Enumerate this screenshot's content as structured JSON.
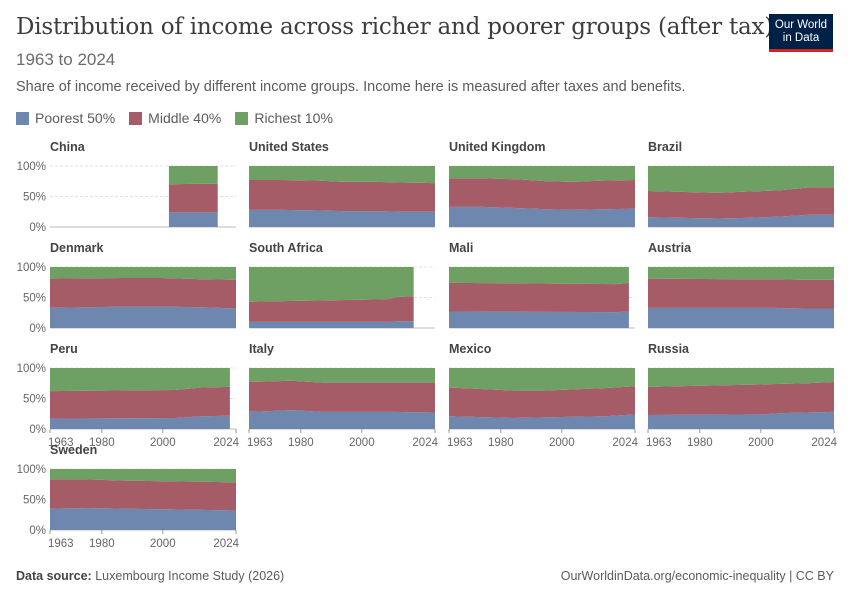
{
  "header": {
    "title": "Distribution of income across richer and poorer groups (after tax)",
    "subtitle": "1963 to 2024",
    "description": "Share of income received by different income groups. Income here is measured after taxes and benefits."
  },
  "logo": {
    "line1": "Our World",
    "line2": "in Data"
  },
  "legend": [
    {
      "label": "Poorest 50%",
      "color": "#6d87ae"
    },
    {
      "label": "Middle 40%",
      "color": "#a65c67"
    },
    {
      "label": "Richest 10%",
      "color": "#6e9f63"
    }
  ],
  "footer": {
    "source_label": "Data source:",
    "source_text": "Luxembourg Income Study (2026)",
    "credit": "OurWorldinData.org/economic-inequality | CC BY"
  },
  "chart_data": {
    "type": "area",
    "stacked": true,
    "xlim": [
      1963,
      2024
    ],
    "ylim": [
      0,
      100
    ],
    "yticks": [
      "0%",
      "50%",
      "100%"
    ],
    "xticks": [
      "1963",
      "1980",
      "2000",
      "2024"
    ],
    "series_names": [
      "Poorest 50%",
      "Middle 40%",
      "Richest 10%"
    ],
    "panels": [
      {
        "name": "China",
        "x": [
          2002,
          2013,
          2018
        ],
        "poorest": [
          24,
          24,
          24
        ],
        "middle": [
          46,
          47,
          47
        ]
      },
      {
        "name": "United States",
        "x": [
          1963,
          1974,
          1986,
          1994,
          2004,
          2013,
          2024
        ],
        "poorest": [
          28,
          28,
          27,
          26,
          26,
          25,
          25
        ],
        "middle": [
          49,
          49,
          49,
          48,
          48,
          48,
          47
        ]
      },
      {
        "name": "United Kingdom",
        "x": [
          1963,
          1974,
          1986,
          1995,
          2004,
          2013,
          2024
        ],
        "poorest": [
          33,
          33,
          31,
          29,
          28,
          29,
          30
        ],
        "middle": [
          47,
          47,
          47,
          46,
          46,
          47,
          47
        ]
      },
      {
        "name": "Brazil",
        "x": [
          1963,
          1986,
          1995,
          2006,
          2016,
          2024
        ],
        "poorest": [
          16,
          14,
          15,
          17,
          20,
          20
        ],
        "middle": [
          43,
          42,
          43,
          43,
          45,
          45
        ]
      },
      {
        "name": "Denmark",
        "x": [
          1963,
          1987,
          2000,
          2013,
          2024
        ],
        "poorest": [
          33,
          35,
          35,
          34,
          32
        ],
        "middle": [
          48,
          47,
          47,
          46,
          47
        ]
      },
      {
        "name": "South Africa",
        "x": [
          1963,
          2008,
          2012,
          2017
        ],
        "poorest": [
          10,
          10,
          11,
          11
        ],
        "middle": [
          33,
          37,
          40,
          41
        ]
      },
      {
        "name": "Mali",
        "x": [
          1963,
          2018,
          2022
        ],
        "poorest": [
          27,
          26,
          27
        ],
        "middle": [
          47,
          46,
          47
        ]
      },
      {
        "name": "Austria",
        "x": [
          1963,
          1994,
          2004,
          2014,
          2024
        ],
        "poorest": [
          33,
          33,
          33,
          32,
          32
        ],
        "middle": [
          48,
          47,
          47,
          47,
          47
        ]
      },
      {
        "name": "Peru",
        "x": [
          1963,
          2004,
          2013,
          2022
        ],
        "poorest": [
          17,
          18,
          21,
          22
        ],
        "middle": [
          45,
          46,
          47,
          47
        ]
      },
      {
        "name": "Italy",
        "x": [
          1963,
          1977,
          1987,
          1998,
          2010,
          2024
        ],
        "poorest": [
          28,
          31,
          28,
          28,
          28,
          27
        ],
        "middle": [
          49,
          48,
          48,
          48,
          48,
          49
        ]
      },
      {
        "name": "Mexico",
        "x": [
          1963,
          1984,
          1994,
          2004,
          2014,
          2024
        ],
        "poorest": [
          21,
          18,
          19,
          20,
          21,
          24
        ],
        "middle": [
          47,
          45,
          44,
          45,
          46,
          46
        ]
      },
      {
        "name": "Russia",
        "x": [
          1963,
          2000,
          2007,
          2015,
          2024
        ],
        "poorest": [
          23,
          24,
          26,
          27,
          28
        ],
        "middle": [
          46,
          49,
          48,
          48,
          49
        ]
      },
      {
        "name": "Sweden",
        "x": [
          1963,
          1975,
          1987,
          2000,
          2013,
          2024
        ],
        "poorest": [
          35,
          36,
          35,
          34,
          33,
          32
        ],
        "middle": [
          48,
          47,
          46,
          46,
          46,
          46
        ]
      }
    ]
  }
}
